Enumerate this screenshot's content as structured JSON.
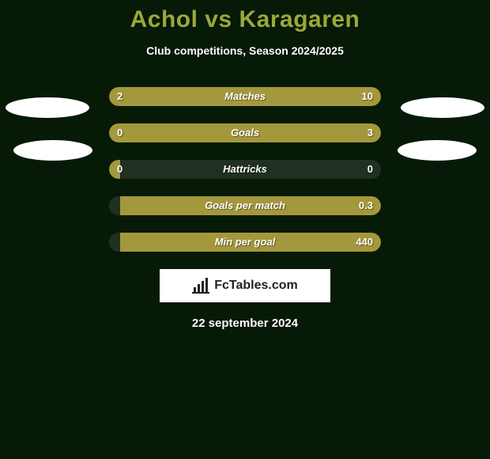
{
  "colors": {
    "background": "#071a08",
    "title": "#9aa83a",
    "text": "#ffffff",
    "bar_empty": "#203021",
    "bar_left": "#a4983c",
    "bar_right": "#a4983c",
    "badge_bg": "#ffffff",
    "badge_text": "#222222"
  },
  "title": "Achol vs Karagaren",
  "subtitle": "Club competitions, Season 2024/2025",
  "date": "22 september 2024",
  "brand": "FcTables.com",
  "bar": {
    "track_width": 344,
    "track_height": 24,
    "radius": 12
  },
  "stats": [
    {
      "label": "Matches",
      "left_val": "2",
      "right_val": "10",
      "left_pct": 17,
      "right_pct": 83
    },
    {
      "label": "Goals",
      "left_val": "0",
      "right_val": "3",
      "left_pct": 4,
      "right_pct": 96
    },
    {
      "label": "Hattricks",
      "left_val": "0",
      "right_val": "0",
      "left_pct": 4,
      "right_pct": 0
    },
    {
      "label": "Goals per match",
      "left_val": "",
      "right_val": "0.3",
      "left_pct": 0,
      "right_pct": 96
    },
    {
      "label": "Min per goal",
      "left_val": "",
      "right_val": "440",
      "left_pct": 0,
      "right_pct": 96
    }
  ]
}
